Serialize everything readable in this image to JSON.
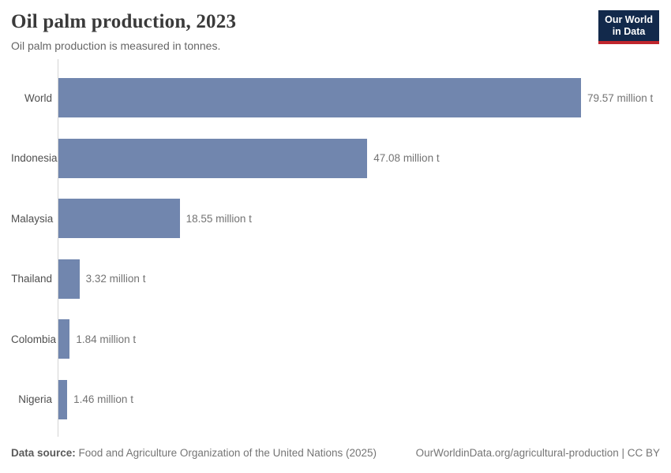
{
  "header": {
    "title": "Oil palm production, 2023",
    "subtitle": "Oil palm production is measured in tonnes.",
    "logo_line1": "Our World",
    "logo_line2": "in Data"
  },
  "chart_data": {
    "type": "bar",
    "orientation": "horizontal",
    "title": "Oil palm production, 2023",
    "categories": [
      "World",
      "Indonesia",
      "Malaysia",
      "Thailand",
      "Colombia",
      "Nigeria"
    ],
    "values": [
      79.57,
      47.08,
      18.55,
      3.32,
      1.84,
      1.46
    ],
    "value_labels": [
      "79.57 million t",
      "47.08 million t",
      "18.55 million t",
      "3.32 million t",
      "1.84 million t",
      "1.46 million t"
    ],
    "unit": "million t",
    "xlim": [
      0,
      79.57
    ],
    "grid": false,
    "legend": "none"
  },
  "colors": {
    "bar": "#7186ae",
    "axis_line": "#d3d3d3",
    "logo_background": "#12294b",
    "logo_underline": "#c0262d"
  },
  "footer": {
    "source_label": "Data source:",
    "source_text": " Food and Agriculture Organization of the United Nations (2025)",
    "license_text": "OurWorldinData.org/agricultural-production | CC BY"
  }
}
